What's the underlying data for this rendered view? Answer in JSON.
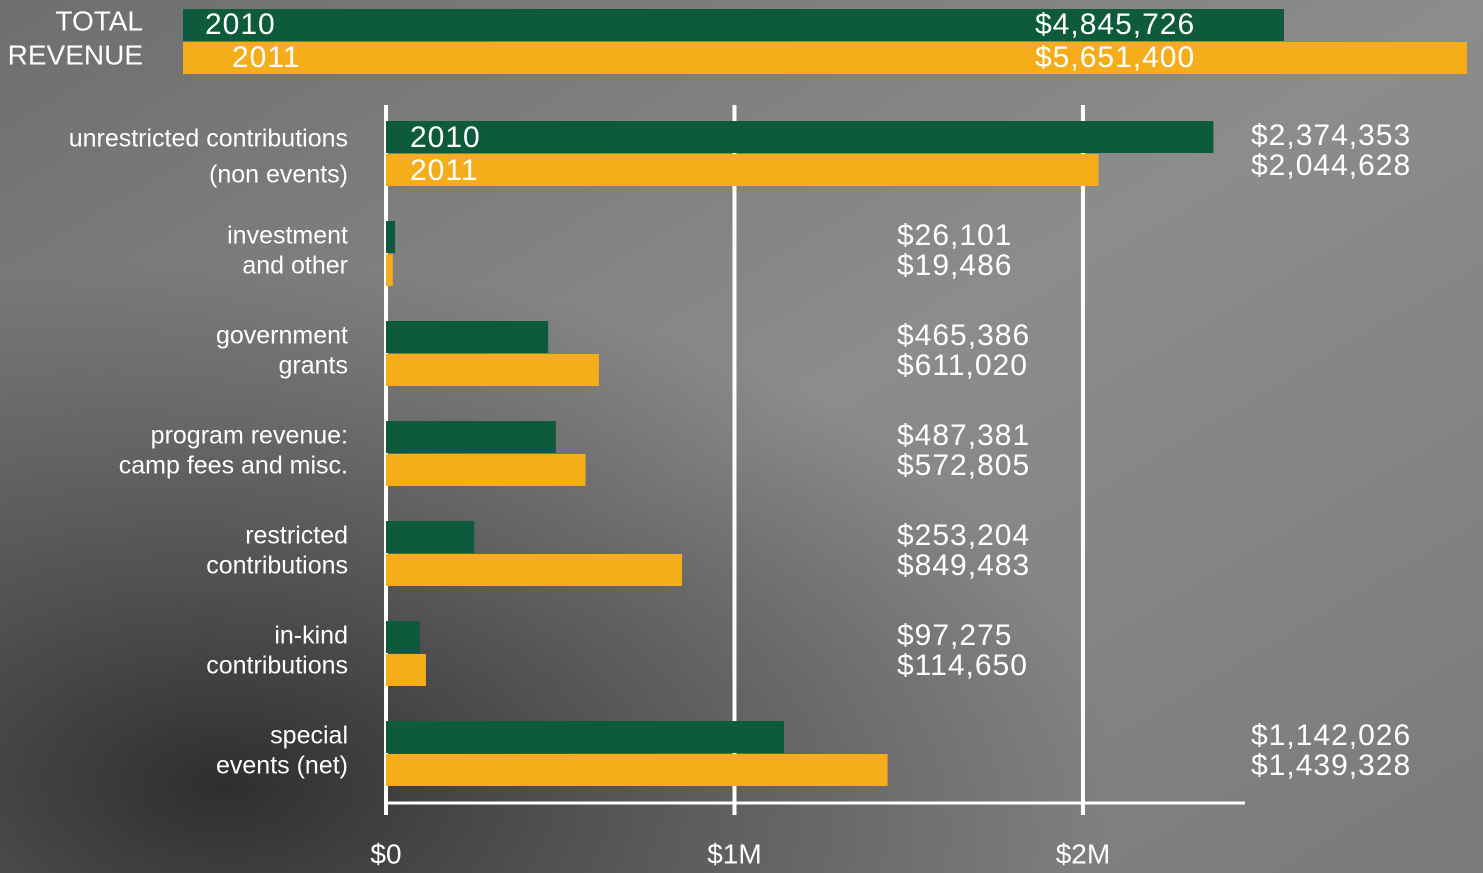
{
  "chart_data": [
    {
      "type": "bar",
      "orientation": "horizontal",
      "label": [
        "TOTAL",
        "REVENUE"
      ],
      "series": [
        {
          "name": "2010",
          "color": "#0d5a3c",
          "values": [
            4845726
          ],
          "value_labels": [
            "$4,845,726"
          ]
        },
        {
          "name": "2011",
          "color": "#f5ae1a",
          "values": [
            5651400
          ],
          "value_labels": [
            "$5,651,400"
          ]
        }
      ]
    },
    {
      "type": "bar",
      "orientation": "horizontal",
      "categories": [
        [
          "unrestricted contributions",
          "(non events)"
        ],
        [
          "investment",
          "and other"
        ],
        [
          "government",
          "grants"
        ],
        [
          "program revenue:",
          "camp fees and misc."
        ],
        [
          "restricted",
          "contributions"
        ],
        [
          "in-kind",
          "contributions"
        ],
        [
          "special",
          "events (net)"
        ]
      ],
      "series": [
        {
          "name": "2010",
          "color": "#0d5a3c",
          "values": [
            2374353,
            26101,
            465386,
            487381,
            253204,
            97275,
            1142026
          ],
          "value_labels": [
            "$2,374,353",
            "$26,101",
            "$465,386",
            "$487,381",
            "$253,204",
            "$97,275",
            "$1,142,026"
          ]
        },
        {
          "name": "2011",
          "color": "#f5ae1a",
          "values": [
            2044628,
            19486,
            611020,
            572805,
            849483,
            114650,
            1439328
          ],
          "value_labels": [
            "$2,044,628",
            "$19,486",
            "$611,020",
            "$572,805",
            "$849,483",
            "$114,650",
            "$1,439,328"
          ]
        }
      ],
      "xlim": [
        0,
        2465000
      ],
      "xticks": [
        {
          "value": 0,
          "label": "$0"
        },
        {
          "value": 1000000,
          "label": "$1M"
        },
        {
          "value": 2000000,
          "label": "$2M"
        }
      ],
      "grid": true
    }
  ]
}
